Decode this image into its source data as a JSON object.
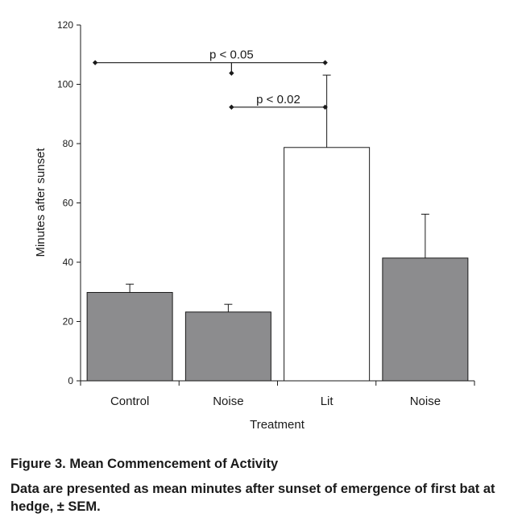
{
  "figure": {
    "title": "Figure 3.  Mean Commencement of Activity",
    "description": "Data are presented as mean minutes after sunset of emergence of first bat at hedge, ± SEM."
  },
  "chart_data": {
    "type": "bar",
    "title": "",
    "xlabel": "Treatment",
    "ylabel": "Minutes after sunset",
    "ylim": [
      0,
      120
    ],
    "yticks": [
      0,
      20,
      40,
      60,
      80,
      100,
      120
    ],
    "grid": false,
    "categories": [
      "Control",
      "Noise",
      "Lit",
      "Noise"
    ],
    "values": [
      29.8,
      23.2,
      78.7,
      41.4
    ],
    "sem": [
      2.8,
      2.6,
      24.4,
      14.8
    ],
    "colors": [
      "#8c8c8e",
      "#8c8c8e",
      "#ffffff",
      "#8c8c8e"
    ],
    "comparisons": [
      {
        "label": "p < 0.05",
        "y": 107.3,
        "from": 0,
        "to": 2,
        "marker": 1
      },
      {
        "label": "p < 0.02",
        "y": 92.3,
        "from": 1,
        "to": 2
      }
    ]
  }
}
